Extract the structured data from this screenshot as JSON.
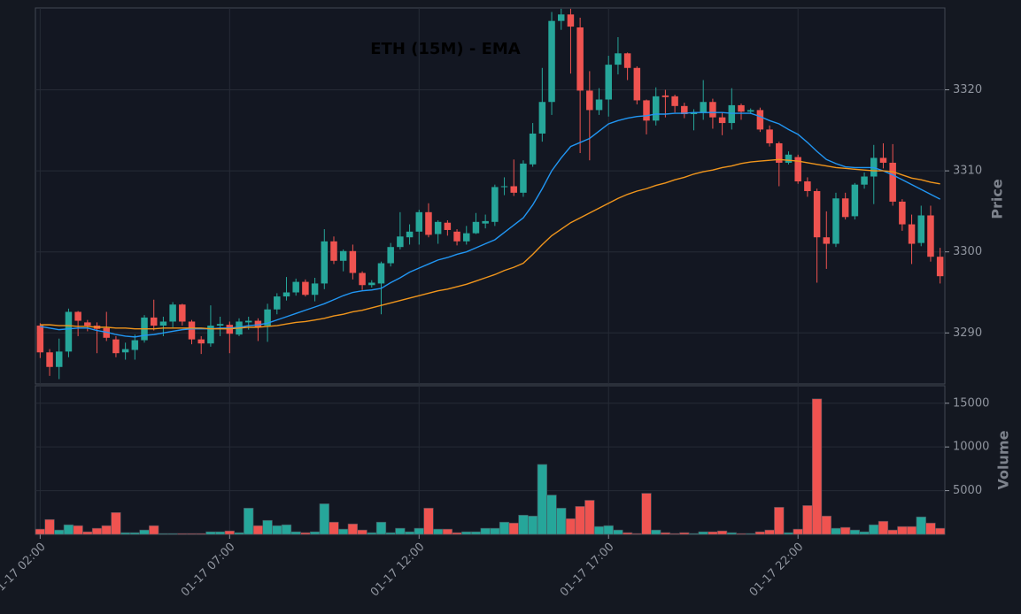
{
  "chart_data": [
    {
      "type": "candlestick",
      "title": "ETH (15M) - EMA",
      "ylabel": "Price",
      "categories": [
        "01-17 02:00",
        null,
        null,
        null,
        null,
        null,
        null,
        null,
        null,
        null,
        null,
        null,
        null,
        null,
        null,
        null,
        null,
        null,
        null,
        null,
        "01-17 07:00",
        null,
        null,
        null,
        null,
        null,
        null,
        null,
        null,
        null,
        null,
        null,
        null,
        null,
        null,
        null,
        null,
        null,
        null,
        null,
        "01-17 12:00",
        null,
        null,
        null,
        null,
        null,
        null,
        null,
        null,
        null,
        null,
        null,
        null,
        null,
        null,
        null,
        null,
        null,
        null,
        null,
        "01-17 17:00",
        null,
        null,
        null,
        null,
        null,
        null,
        null,
        null,
        null,
        null,
        null,
        null,
        null,
        null,
        null,
        null,
        null,
        null,
        null,
        "01-17 22:00",
        null,
        null,
        null,
        null,
        null,
        null,
        null,
        null,
        null,
        null,
        null,
        null,
        null,
        null,
        null
      ],
      "open": [
        3290.9,
        3287.6,
        3285.8,
        3287.7,
        3292.6,
        3291.3,
        3290.9,
        3290.6,
        3289.2,
        3287.6,
        3287.9,
        3289.1,
        3291.9,
        3290.9,
        3291.4,
        3293.5,
        3291.4,
        3289.2,
        3288.7,
        3290.9,
        3291,
        3289.8,
        3291.3,
        3291.5,
        3290.9,
        3292.9,
        3294.5,
        3295,
        3296.3,
        3294.7,
        3296.1,
        3301.3,
        3298.9,
        3300.1,
        3297.4,
        3295.9,
        3296.1,
        3298.6,
        3300.6,
        3301.8,
        3302.5,
        3304.9,
        3302.2,
        3303.6,
        3302.5,
        3301.3,
        3302.3,
        3303.5,
        3303.7,
        3308,
        3308.1,
        3307.3,
        3310.8,
        3314.6,
        3318.5,
        3328.5,
        3329.3,
        3327.7,
        3319.9,
        3317.5,
        3318.8,
        3323.1,
        3324.5,
        3322.7,
        3318.7,
        3316.2,
        3319.3,
        3319.2,
        3318,
        3317,
        3317.2,
        3318.5,
        3316.6,
        3315.9,
        3318.1,
        3317.3,
        3317.5,
        3315.1,
        3313.4,
        3311,
        3311.7,
        3308.7,
        3307.5,
        3301.8,
        3301,
        3306.6,
        3304.4,
        3308.3,
        3309.3,
        3311.6,
        3311,
        3306.2,
        3303.4,
        3301.1,
        3304.5,
        3299.4
      ],
      "high": [
        3291.2,
        3288,
        3289.3,
        3293,
        3292.7,
        3291.6,
        3291.3,
        3292.6,
        3289.6,
        3288.8,
        3289.8,
        3292.2,
        3294.1,
        3292,
        3293.8,
        3293.6,
        3291.6,
        3289.6,
        3293.4,
        3292,
        3291.4,
        3291.8,
        3292,
        3291.8,
        3293.6,
        3294.9,
        3296.9,
        3296.7,
        3296.6,
        3296.8,
        3302.8,
        3301.9,
        3300.3,
        3300.9,
        3297.6,
        3296.5,
        3298.8,
        3301.1,
        3304.9,
        3303.4,
        3305.2,
        3306,
        3303.9,
        3303.9,
        3302.8,
        3303.2,
        3304.8,
        3304.6,
        3308.3,
        3309.2,
        3311.4,
        3311.3,
        3315.9,
        3322.7,
        3329.6,
        3330,
        3330,
        3328.9,
        3322.3,
        3320.2,
        3324.2,
        3326.5,
        3324.6,
        3322.9,
        3318.8,
        3320.3,
        3320,
        3319.4,
        3318.4,
        3317.6,
        3321.2,
        3318.9,
        3317.2,
        3320.2,
        3318.3,
        3317.7,
        3317.8,
        3315.6,
        3313.6,
        3312.4,
        3312,
        3309.2,
        3307.8,
        3305,
        3307.3,
        3307.3,
        3308.5,
        3309.8,
        3313.2,
        3313.4,
        3313.3,
        3306.5,
        3304.6,
        3305.7,
        3305.7,
        3300.5
      ],
      "low": [
        3286.9,
        3284.7,
        3284.3,
        3287,
        3289.6,
        3290.2,
        3287.5,
        3289,
        3287,
        3286.7,
        3286.7,
        3288.8,
        3290.3,
        3289.6,
        3290.7,
        3290.9,
        3288.6,
        3287.4,
        3288.3,
        3289.6,
        3287.5,
        3289.6,
        3290.4,
        3289,
        3288.9,
        3292.3,
        3294,
        3294.6,
        3294.5,
        3293.9,
        3295.4,
        3298.5,
        3297.6,
        3296.6,
        3295.3,
        3295.6,
        3292.3,
        3298.2,
        3300.3,
        3300.9,
        3300.9,
        3301.8,
        3301,
        3302,
        3300.8,
        3300.9,
        3302.2,
        3302.9,
        3303.2,
        3307,
        3306.9,
        3306.8,
        3310.5,
        3313.6,
        3316.9,
        3327.4,
        3322,
        3312.2,
        3311.3,
        3316.9,
        3316.7,
        3321.9,
        3321.2,
        3318.2,
        3314.5,
        3315.6,
        3316.6,
        3317.2,
        3316.5,
        3315,
        3316.3,
        3315.2,
        3314.4,
        3315.1,
        3316.3,
        3317,
        3314.8,
        3313,
        3308.1,
        3310.8,
        3308.4,
        3306.8,
        3296.2,
        3297.9,
        3300.6,
        3304,
        3304,
        3307.8,
        3305.9,
        3310.3,
        3305.7,
        3302.6,
        3298.5,
        3300.7,
        3298.8,
        3296.1
      ],
      "close": [
        3287.6,
        3285.8,
        3287.7,
        3292.6,
        3291.5,
        3290.9,
        3290.5,
        3289.4,
        3287.5,
        3288,
        3289.1,
        3291.9,
        3290.9,
        3291.4,
        3293.5,
        3291.4,
        3289.2,
        3288.7,
        3290.9,
        3291.1,
        3289.9,
        3291.4,
        3291.5,
        3290.7,
        3292.9,
        3294.5,
        3295,
        3296.3,
        3294.7,
        3296.1,
        3301.3,
        3298.9,
        3300.1,
        3297.4,
        3295.9,
        3296.2,
        3298.6,
        3300.6,
        3301.9,
        3302.5,
        3304.9,
        3302.1,
        3303.7,
        3302.7,
        3301.3,
        3302.3,
        3303.7,
        3303.8,
        3308,
        3308.1,
        3307.3,
        3310.9,
        3314.6,
        3318.5,
        3328.5,
        3329.3,
        3327.8,
        3319.9,
        3317.5,
        3318.8,
        3323.1,
        3324.5,
        3322.7,
        3318.7,
        3316.2,
        3319.2,
        3319.1,
        3318,
        3317,
        3317.2,
        3318.5,
        3316.6,
        3315.9,
        3318.1,
        3317.3,
        3317.5,
        3315.1,
        3313.4,
        3311,
        3312,
        3308.7,
        3307.5,
        3301.8,
        3301,
        3306.6,
        3304.3,
        3308.3,
        3309.3,
        3311.6,
        3311,
        3306.2,
        3303.4,
        3301,
        3304.5,
        3299.4,
        3297
      ],
      "series": [
        {
          "color": "#2196f3",
          "values": [
            3290.8,
            3290.6,
            3290.4,
            3290.5,
            3290.6,
            3290.6,
            3290.3,
            3290.1,
            3289.8,
            3289.6,
            3289.5,
            3289.7,
            3289.8,
            3290,
            3290.2,
            3290.4,
            3290.5,
            3290.5,
            3290.5,
            3290.6,
            3290.6,
            3290.7,
            3290.9,
            3291,
            3291.2,
            3291.6,
            3292,
            3292.4,
            3292.8,
            3293.2,
            3293.6,
            3294.1,
            3294.6,
            3295,
            3295.2,
            3295.3,
            3295.5,
            3296.2,
            3296.8,
            3297.5,
            3298,
            3298.5,
            3299,
            3299.3,
            3299.7,
            3300,
            3300.5,
            3301,
            3301.5,
            3302.4,
            3303.3,
            3304.2,
            3305.8,
            3307.8,
            3310,
            3311.6,
            3313,
            3313.5,
            3314,
            3314.9,
            3315.8,
            3316.2,
            3316.5,
            3316.7,
            3316.8,
            3317,
            3317,
            3317.1,
            3317.1,
            3317.2,
            3317.2,
            3317.2,
            3317.2,
            3317.1,
            3317.1,
            3317.1,
            3316.7,
            3316.2,
            3315.8,
            3315.1,
            3314.5,
            3313.5,
            3312.4,
            3311.4,
            3310.9,
            3310.5,
            3310.4,
            3310.4,
            3310.4,
            3310,
            3309.5,
            3308.9,
            3308.3,
            3307.7,
            3307.1,
            3306.5
          ]
        },
        {
          "color": "#f0951c",
          "values": [
            3291,
            3291,
            3290.9,
            3290.9,
            3290.8,
            3290.8,
            3290.7,
            3290.7,
            3290.6,
            3290.6,
            3290.5,
            3290.5,
            3290.5,
            3290.6,
            3290.6,
            3290.6,
            3290.6,
            3290.6,
            3290.5,
            3290.5,
            3290.5,
            3290.6,
            3290.7,
            3290.7,
            3290.8,
            3290.9,
            3291.1,
            3291.3,
            3291.4,
            3291.6,
            3291.8,
            3292.1,
            3292.3,
            3292.6,
            3292.8,
            3293.1,
            3293.4,
            3293.7,
            3294,
            3294.3,
            3294.6,
            3294.9,
            3295.2,
            3295.4,
            3295.7,
            3296,
            3296.4,
            3296.8,
            3297.2,
            3297.7,
            3298.1,
            3298.6,
            3299.7,
            3300.9,
            3302,
            3302.8,
            3303.6,
            3304.2,
            3304.8,
            3305.4,
            3306,
            3306.6,
            3307.1,
            3307.5,
            3307.8,
            3308.2,
            3308.5,
            3308.9,
            3309.2,
            3309.6,
            3309.9,
            3310.1,
            3310.4,
            3310.6,
            3310.9,
            3311.1,
            3311.2,
            3311.3,
            3311.4,
            3311.3,
            3311.2,
            3311,
            3310.8,
            3310.6,
            3310.4,
            3310.3,
            3310.2,
            3310.1,
            3310,
            3310,
            3309.9,
            3309.5,
            3309.1,
            3308.9,
            3308.6,
            3308.4
          ]
        }
      ],
      "up_color": "#26a69a",
      "down_color": "#ef5350",
      "ylim": [
        3283.7,
        3330.1
      ],
      "yticks": [
        3290,
        3300,
        3310,
        3320
      ],
      "grid": true
    },
    {
      "type": "bar",
      "ylabel": "Volume",
      "values": [
        600,
        1700,
        500,
        1100,
        1000,
        300,
        700,
        1000,
        2500,
        200,
        200,
        500,
        1000,
        100,
        100,
        100,
        100,
        100,
        300,
        300,
        400,
        200,
        3000,
        1000,
        1600,
        1000,
        1100,
        300,
        200,
        300,
        3500,
        1400,
        600,
        1200,
        500,
        200,
        1400,
        200,
        700,
        300,
        700,
        3000,
        600,
        600,
        200,
        300,
        300,
        700,
        700,
        1400,
        1300,
        2200,
        2100,
        8000,
        4500,
        3000,
        1800,
        3200,
        3900,
        900,
        1000,
        500,
        200,
        100,
        4700,
        500,
        200,
        100,
        200,
        100,
        300,
        300,
        400,
        200,
        100,
        100,
        300,
        500,
        3100,
        200,
        600,
        3300,
        15500,
        2100,
        700,
        800,
        500,
        300,
        1100,
        1500,
        500,
        900,
        900,
        2000,
        1300,
        700
      ],
      "ylim": [
        0,
        17000
      ],
      "yticks": [
        5000,
        10000,
        15000
      ],
      "grid": true
    }
  ]
}
